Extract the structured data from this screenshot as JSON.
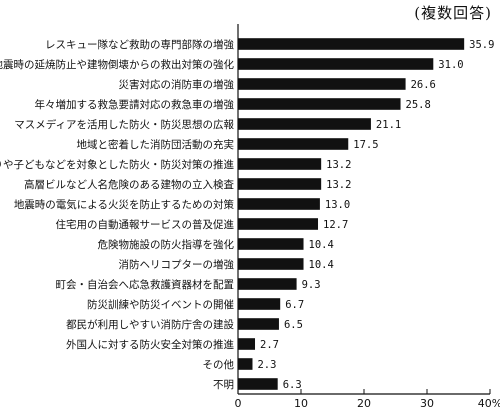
{
  "note": "(複数回答)",
  "chart_data": {
    "type": "bar",
    "orientation": "horizontal",
    "categories": [
      "レスキュー隊など救助の専門部隊の増強",
      "地震時の延焼防止や建物倒壊からの救出対策の強化",
      "災害対応の消防車の増強",
      "年々増加する救急要請対応の救急車の増強",
      "マスメディアを活用した防火・防災思想の広報",
      "地域と密着した消防団活動の充実",
      "お年寄りや子どもなどを対象とした防火・防災対策の推進",
      "高層ビルなど人名危険のある建物の立入検査",
      "地震時の電気による火災を防止するための対策",
      "住宅用の自動通報サービスの普及促進",
      "危険物施設の防火指導を強化",
      "消防ヘリコプターの増強",
      "町会・自治会へ応急救護資器材を配置",
      "防災訓練や防災イベントの開催",
      "都民が利用しやすい消防庁舎の建設",
      "外国人に対する防火安全対策の推進",
      "その他",
      "不明"
    ],
    "values": [
      35.9,
      31.0,
      26.6,
      25.8,
      21.1,
      17.5,
      13.2,
      13.2,
      13.0,
      12.7,
      10.4,
      10.4,
      9.3,
      6.7,
      6.5,
      2.7,
      2.3,
      6.3
    ],
    "value_labels": [
      "35.9",
      "31.0",
      "26.6",
      "25.8",
      "21.1",
      "17.5",
      "13.2",
      "13.2",
      "13.0",
      "12.7",
      "10.4",
      "10.4",
      "9.3",
      "6.7",
      "6.5",
      "2.7",
      "2.3",
      "6.3"
    ],
    "xlim": [
      0,
      40
    ],
    "xticks": [
      0,
      10,
      20,
      30,
      40
    ],
    "xtick_labels": [
      "0",
      "10",
      "20",
      "30",
      "40%"
    ],
    "bar_color": "#111111",
    "grid": false
  }
}
